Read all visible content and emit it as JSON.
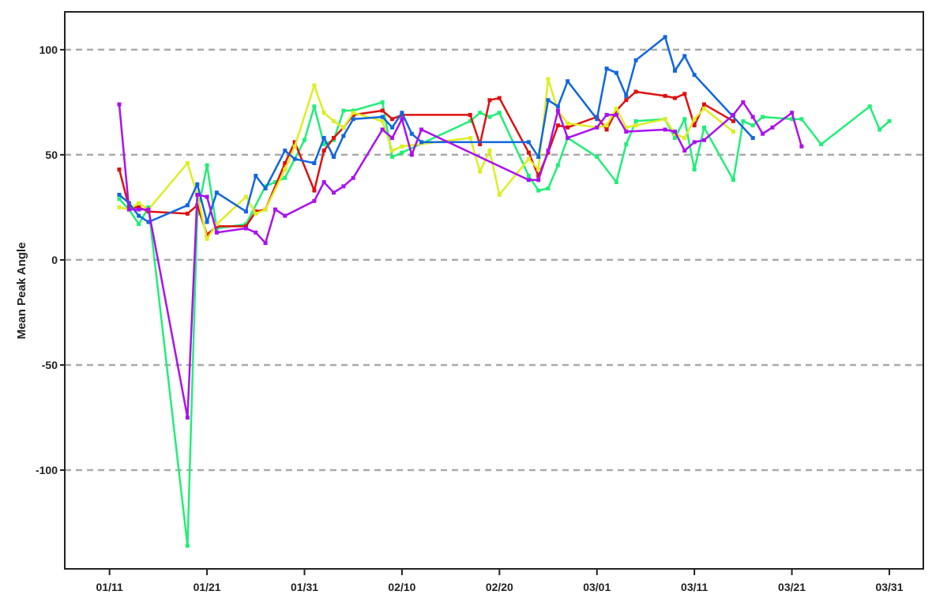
{
  "chart_data": {
    "type": "line",
    "title": "",
    "xlabel": "",
    "ylabel": "Mean Peak Angle",
    "x_ticks": [
      "01/11",
      "01/21",
      "01/31",
      "02/10",
      "02/20",
      "03/01",
      "03/11",
      "03/21",
      "03/31"
    ],
    "y_ticks": [
      -100,
      -50,
      0,
      50,
      100
    ],
    "xlim": [
      "01/09",
      "03/31"
    ],
    "ylim": [
      -147,
      118
    ],
    "grid": "horizontal dashed",
    "legend": "none",
    "series": [
      {
        "color": "#22ee77",
        "points": [
          [
            "01/12",
            29
          ],
          [
            "01/13",
            24
          ],
          [
            "01/14",
            17
          ],
          [
            "01/15",
            25
          ],
          [
            "01/19",
            -136
          ],
          [
            "01/20",
            22
          ],
          [
            "01/21",
            45
          ],
          [
            "01/22",
            15
          ],
          [
            "01/25",
            17
          ],
          [
            "01/27",
            35
          ],
          [
            "01/28",
            37
          ],
          [
            "01/29",
            39
          ],
          [
            "01/31",
            57
          ],
          [
            "02/01",
            73
          ],
          [
            "02/02",
            55
          ],
          [
            "02/03",
            57
          ],
          [
            "02/04",
            71
          ],
          [
            "02/05",
            71
          ],
          [
            "02/08",
            75
          ],
          [
            "02/09",
            49
          ],
          [
            "02/10",
            51
          ],
          [
            "02/17",
            66
          ],
          [
            "02/18",
            70
          ],
          [
            "02/19",
            68
          ],
          [
            "02/20",
            70
          ],
          [
            "02/23",
            40
          ],
          [
            "02/24",
            33
          ],
          [
            "02/25",
            34
          ],
          [
            "02/26",
            45
          ],
          [
            "02/27",
            58
          ],
          [
            "03/01",
            49
          ],
          [
            "03/03",
            37
          ],
          [
            "03/04",
            55
          ],
          [
            "03/05",
            66
          ],
          [
            "03/08",
            67
          ],
          [
            "03/09",
            58
          ],
          [
            "03/10",
            67
          ],
          [
            "03/11",
            43
          ],
          [
            "03/12",
            63
          ],
          [
            "03/15",
            38
          ],
          [
            "03/16",
            66
          ],
          [
            "03/17",
            64
          ],
          [
            "03/18",
            68
          ],
          [
            "03/21",
            67
          ],
          [
            "03/22",
            67
          ],
          [
            "03/24",
            55
          ],
          [
            "03/29",
            73
          ],
          [
            "03/30",
            62
          ],
          [
            "03/31",
            66
          ]
        ]
      },
      {
        "color": "#dd1111",
        "points": [
          [
            "01/12",
            43
          ],
          [
            "01/13",
            25
          ],
          [
            "01/14",
            25
          ],
          [
            "01/15",
            23
          ],
          [
            "01/19",
            22
          ],
          [
            "01/20",
            26
          ],
          [
            "01/21",
            12
          ],
          [
            "01/22",
            16
          ],
          [
            "01/25",
            16
          ],
          [
            "01/26",
            23
          ],
          [
            "01/27",
            24
          ],
          [
            "01/29",
            46
          ],
          [
            "01/30",
            56
          ],
          [
            "02/01",
            33
          ],
          [
            "02/02",
            52
          ],
          [
            "02/03",
            58
          ],
          [
            "02/04",
            63
          ],
          [
            "02/05",
            69
          ],
          [
            "02/08",
            71
          ],
          [
            "02/09",
            67
          ],
          [
            "02/10",
            69
          ],
          [
            "02/17",
            69
          ],
          [
            "02/18",
            55
          ],
          [
            "02/19",
            76
          ],
          [
            "02/20",
            77
          ],
          [
            "02/23",
            51
          ],
          [
            "02/24",
            40
          ],
          [
            "02/25",
            51
          ],
          [
            "02/26",
            64
          ],
          [
            "02/27",
            63
          ],
          [
            "03/01",
            68
          ],
          [
            "03/02",
            62
          ],
          [
            "03/03",
            71
          ],
          [
            "03/04",
            76
          ],
          [
            "03/05",
            80
          ],
          [
            "03/08",
            78
          ],
          [
            "03/09",
            77
          ],
          [
            "03/10",
            79
          ],
          [
            "03/11",
            64
          ],
          [
            "03/12",
            74
          ],
          [
            "03/15",
            66
          ]
        ]
      },
      {
        "color": "#ddee22",
        "points": [
          [
            "01/12",
            25
          ],
          [
            "01/13",
            24
          ],
          [
            "01/14",
            27
          ],
          [
            "01/15",
            24
          ],
          [
            "01/19",
            46
          ],
          [
            "01/20",
            31
          ],
          [
            "01/21",
            10
          ],
          [
            "01/22",
            17
          ],
          [
            "01/25",
            30
          ],
          [
            "01/26",
            22
          ],
          [
            "01/27",
            24
          ],
          [
            "01/29",
            43
          ],
          [
            "01/30",
            54
          ],
          [
            "02/01",
            83
          ],
          [
            "02/02",
            70
          ],
          [
            "02/03",
            66
          ],
          [
            "02/04",
            63
          ],
          [
            "02/05",
            70
          ],
          [
            "02/08",
            66
          ],
          [
            "02/09",
            52
          ],
          [
            "02/10",
            54
          ],
          [
            "02/17",
            58
          ],
          [
            "02/18",
            42
          ],
          [
            "02/19",
            52
          ],
          [
            "02/20",
            31
          ],
          [
            "02/23",
            48
          ],
          [
            "02/24",
            43
          ],
          [
            "02/25",
            86
          ],
          [
            "02/26",
            71
          ],
          [
            "02/27",
            65
          ],
          [
            "03/01",
            63
          ],
          [
            "03/02",
            64
          ],
          [
            "03/03",
            72
          ],
          [
            "03/04",
            63
          ],
          [
            "03/05",
            64
          ],
          [
            "03/08",
            67
          ],
          [
            "03/09",
            60
          ],
          [
            "03/10",
            58
          ],
          [
            "03/11",
            67
          ],
          [
            "03/12",
            72
          ],
          [
            "03/15",
            61
          ]
        ]
      },
      {
        "color": "#1166dd",
        "points": [
          [
            "01/12",
            31
          ],
          [
            "01/13",
            27
          ],
          [
            "01/14",
            21
          ],
          [
            "01/15",
            18
          ],
          [
            "01/19",
            26
          ],
          [
            "01/20",
            36
          ],
          [
            "01/21",
            18
          ],
          [
            "01/22",
            32
          ],
          [
            "01/25",
            23
          ],
          [
            "01/26",
            40
          ],
          [
            "01/27",
            34
          ],
          [
            "01/29",
            52
          ],
          [
            "01/30",
            48
          ],
          [
            "02/01",
            46
          ],
          [
            "02/02",
            58
          ],
          [
            "02/03",
            49
          ],
          [
            "02/04",
            59
          ],
          [
            "02/05",
            67
          ],
          [
            "02/08",
            68
          ],
          [
            "02/09",
            63
          ],
          [
            "02/10",
            70
          ],
          [
            "02/11",
            60
          ],
          [
            "02/12",
            56
          ],
          [
            "02/23",
            56
          ],
          [
            "02/24",
            49
          ],
          [
            "02/25",
            76
          ],
          [
            "02/26",
            73
          ],
          [
            "02/27",
            85
          ],
          [
            "03/01",
            67
          ],
          [
            "03/02",
            91
          ],
          [
            "03/03",
            89
          ],
          [
            "03/04",
            78
          ],
          [
            "03/05",
            95
          ],
          [
            "03/08",
            106
          ],
          [
            "03/09",
            90
          ],
          [
            "03/10",
            97
          ],
          [
            "03/11",
            88
          ],
          [
            "03/17",
            58
          ]
        ]
      },
      {
        "color": "#aa11ee",
        "points": [
          [
            "01/12",
            74
          ],
          [
            "01/13",
            24
          ],
          [
            "01/14",
            24
          ],
          [
            "01/15",
            24
          ],
          [
            "01/19",
            -75
          ],
          [
            "01/20",
            31
          ],
          [
            "01/21",
            30
          ],
          [
            "01/22",
            13
          ],
          [
            "01/25",
            15
          ],
          [
            "01/26",
            13
          ],
          [
            "01/27",
            8
          ],
          [
            "01/28",
            24
          ],
          [
            "01/29",
            21
          ],
          [
            "02/01",
            28
          ],
          [
            "02/02",
            37
          ],
          [
            "02/03",
            32
          ],
          [
            "02/04",
            35
          ],
          [
            "02/05",
            39
          ],
          [
            "02/08",
            62
          ],
          [
            "02/09",
            58
          ],
          [
            "02/10",
            67
          ],
          [
            "02/11",
            50
          ],
          [
            "02/12",
            62
          ],
          [
            "02/23",
            38
          ],
          [
            "02/24",
            38
          ],
          [
            "02/25",
            52
          ],
          [
            "02/26",
            71
          ],
          [
            "02/27",
            58
          ],
          [
            "03/01",
            63
          ],
          [
            "03/02",
            69
          ],
          [
            "03/03",
            69
          ],
          [
            "03/04",
            61
          ],
          [
            "03/08",
            62
          ],
          [
            "03/09",
            61
          ],
          [
            "03/10",
            52
          ],
          [
            "03/11",
            56
          ],
          [
            "03/12",
            57
          ],
          [
            "03/15",
            69
          ],
          [
            "03/16",
            75
          ],
          [
            "03/17",
            68
          ],
          [
            "03/18",
            60
          ],
          [
            "03/19",
            63
          ],
          [
            "03/21",
            70
          ],
          [
            "03/22",
            54
          ]
        ]
      }
    ]
  }
}
